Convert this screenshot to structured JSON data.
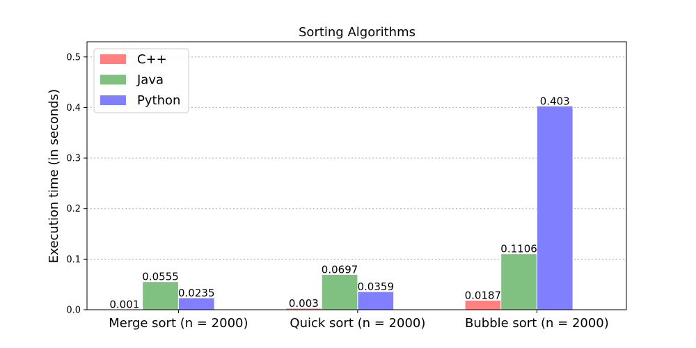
{
  "chart_data": {
    "type": "bar",
    "title": "Sorting Algorithms",
    "xlabel": "",
    "ylabel": "Execution time (in seconds)",
    "categories": [
      "Merge sort (n = 2000)",
      "Quick sort (n = 2000)",
      "Bubble sort (n = 2000)"
    ],
    "series": [
      {
        "name": "C++",
        "color": "#ff8080",
        "values": [
          0.001,
          0.003,
          0.0187
        ],
        "labels": [
          "0.001",
          "0.003",
          "0.0187"
        ]
      },
      {
        "name": "Java",
        "color": "#80c080",
        "values": [
          0.0555,
          0.0697,
          0.1106
        ],
        "labels": [
          "0.0555",
          "0.0697",
          "0.1106"
        ]
      },
      {
        "name": "Python",
        "color": "#8080ff",
        "values": [
          0.0235,
          0.0359,
          0.403
        ],
        "labels": [
          "0.0235",
          "0.0359",
          "0.403"
        ]
      }
    ],
    "ylim": [
      0,
      0.53
    ],
    "yticks": [
      0.0,
      0.1,
      0.2,
      0.3,
      0.4,
      0.5
    ],
    "ytick_labels": [
      "0.0",
      "0.1",
      "0.2",
      "0.3",
      "0.4",
      "0.5"
    ],
    "grid": "horizontal dotted",
    "legend_position": "top-left"
  }
}
